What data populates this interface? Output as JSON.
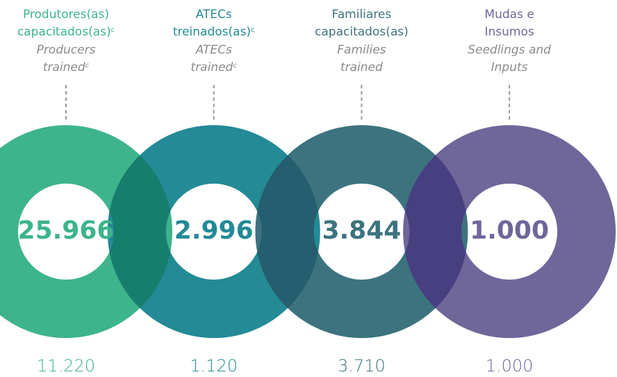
{
  "items": [
    {
      "pt": [
        "Produtores(as)",
        "capacitados(as)"
      ],
      "pt_mark": "c",
      "en": [
        "Producers",
        "trained"
      ],
      "en_mark": "c",
      "value": "25.966",
      "secondary": "11.220",
      "color": "#3db48b",
      "overlap": "#177e6e"
    },
    {
      "pt": [
        "ATECs",
        "treinados(as)"
      ],
      "pt_mark": "c",
      "en": [
        "ATECs",
        "trained"
      ],
      "en_mark": "c",
      "value": "2.996",
      "secondary": "1.120",
      "color": "#238a96",
      "overlap": "#255e6e"
    },
    {
      "pt": [
        "Familiares",
        "capacitados(as)"
      ],
      "en": [
        "Families",
        "trained"
      ],
      "value": "3.844",
      "secondary": "3.710",
      "color": "#3c737f",
      "overlap": "#473f80"
    },
    {
      "pt": [
        "Mudas e",
        "Insumos"
      ],
      "en": [
        "Seedlings and",
        "Inputs"
      ],
      "value": "1.000",
      "secondary": "1.000",
      "color": "#6f6699"
    }
  ]
}
